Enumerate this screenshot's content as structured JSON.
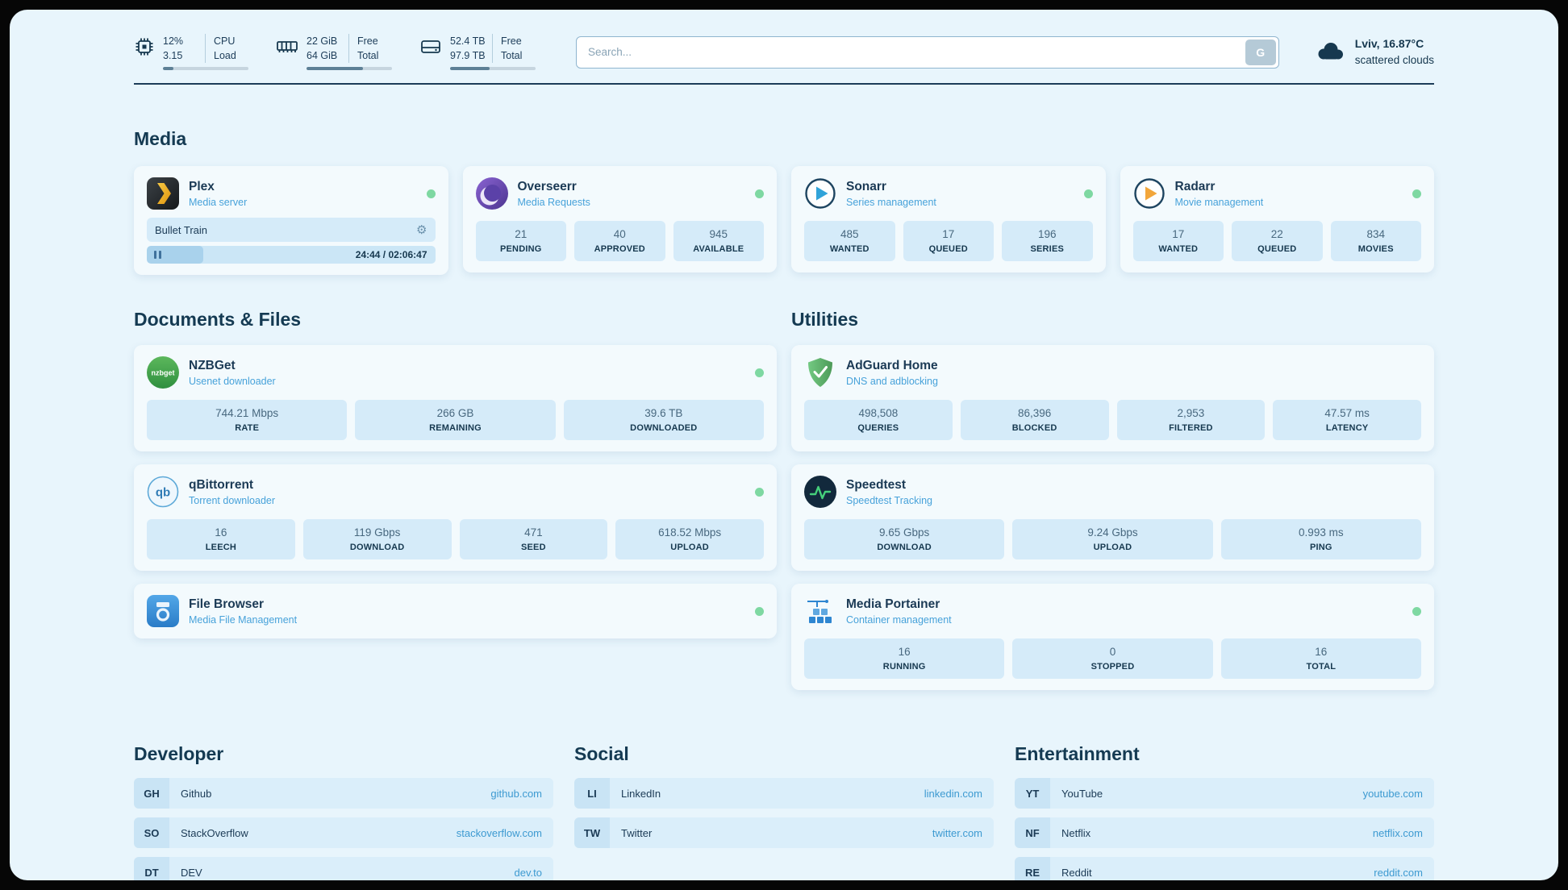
{
  "colors": {
    "background": "#e8f5fc",
    "card": "#f3fafd",
    "stat_box": "#d5ebf9",
    "accent_blue": "#3d9ad1",
    "status_online_green": "#7ed8a2",
    "heading": "#143a52"
  },
  "icons": {
    "gear": "⚙"
  },
  "topbar": {
    "cpu": {
      "usage": "12%",
      "load": "3.15",
      "label_top": "CPU",
      "label_bottom": "Load",
      "percent": 12
    },
    "ram": {
      "free": "22 GiB",
      "total": "64 GiB",
      "label_top": "Free",
      "label_bottom": "Total",
      "percent": 66
    },
    "disk": {
      "free": "52.4 TB",
      "total": "97.9 TB",
      "label_top": "Free",
      "label_bottom": "Total",
      "percent": 46
    },
    "search": {
      "placeholder": "Search...",
      "button_label": "G"
    },
    "weather": {
      "location": "Lviv, 16.87°C",
      "condition": "scattered clouds"
    }
  },
  "media": {
    "title": "Media",
    "plex": {
      "name": "Plex",
      "subtitle": "Media server",
      "status": "online",
      "now_playing": {
        "title": "Bullet Train",
        "time": "24:44 / 02:06:47",
        "progress_percent": 19.5
      }
    },
    "overseerr": {
      "name": "Overseerr",
      "subtitle": "Media Requests",
      "status": "online",
      "stats": [
        {
          "value": "21",
          "label": "PENDING"
        },
        {
          "value": "40",
          "label": "APPROVED"
        },
        {
          "value": "945",
          "label": "AVAILABLE"
        }
      ]
    },
    "sonarr": {
      "name": "Sonarr",
      "subtitle": "Series management",
      "status": "online",
      "stats": [
        {
          "value": "485",
          "label": "WANTED"
        },
        {
          "value": "17",
          "label": "QUEUED"
        },
        {
          "value": "196",
          "label": "SERIES"
        }
      ]
    },
    "radarr": {
      "name": "Radarr",
      "subtitle": "Movie management",
      "status": "online",
      "stats": [
        {
          "value": "17",
          "label": "WANTED"
        },
        {
          "value": "22",
          "label": "QUEUED"
        },
        {
          "value": "834",
          "label": "MOVIES"
        }
      ]
    }
  },
  "documents": {
    "title": "Documents & Files",
    "nzbget": {
      "name": "NZBGet",
      "subtitle": "Usenet downloader",
      "status": "online",
      "stats": [
        {
          "value": "744.21 Mbps",
          "label": "RATE"
        },
        {
          "value": "266 GB",
          "label": "REMAINING"
        },
        {
          "value": "39.6 TB",
          "label": "DOWNLOADED"
        }
      ]
    },
    "qbittorrent": {
      "name": "qBittorrent",
      "subtitle": "Torrent downloader",
      "status": "online",
      "stats": [
        {
          "value": "16",
          "label": "LEECH"
        },
        {
          "value": "119 Gbps",
          "label": "DOWNLOAD"
        },
        {
          "value": "471",
          "label": "SEED"
        },
        {
          "value": "618.52 Mbps",
          "label": "UPLOAD"
        }
      ]
    },
    "filebrowser": {
      "name": "File Browser",
      "subtitle": "Media File Management",
      "status": "online"
    }
  },
  "utilities": {
    "title": "Utilities",
    "adguard": {
      "name": "AdGuard Home",
      "subtitle": "DNS and adblocking",
      "stats": [
        {
          "value": "498,508",
          "label": "QUERIES"
        },
        {
          "value": "86,396",
          "label": "BLOCKED"
        },
        {
          "value": "2,953",
          "label": "FILTERED"
        },
        {
          "value": "47.57 ms",
          "label": "LATENCY"
        }
      ]
    },
    "speedtest": {
      "name": "Speedtest",
      "subtitle": "Speedtest Tracking",
      "stats": [
        {
          "value": "9.65 Gbps",
          "label": "DOWNLOAD"
        },
        {
          "value": "9.24 Gbps",
          "label": "UPLOAD"
        },
        {
          "value": "0.993 ms",
          "label": "PING"
        }
      ]
    },
    "portainer": {
      "name": "Media Portainer",
      "subtitle": "Container management",
      "status": "online",
      "stats": [
        {
          "value": "16",
          "label": "RUNNING"
        },
        {
          "value": "0",
          "label": "STOPPED"
        },
        {
          "value": "16",
          "label": "TOTAL"
        }
      ]
    }
  },
  "links": {
    "developer": {
      "title": "Developer",
      "items": [
        {
          "badge": "GH",
          "name": "Github",
          "url": "github.com"
        },
        {
          "badge": "SO",
          "name": "StackOverflow",
          "url": "stackoverflow.com"
        },
        {
          "badge": "DT",
          "name": "DEV",
          "url": "dev.to"
        }
      ]
    },
    "social": {
      "title": "Social",
      "items": [
        {
          "badge": "LI",
          "name": "LinkedIn",
          "url": "linkedin.com"
        },
        {
          "badge": "TW",
          "name": "Twitter",
          "url": "twitter.com"
        }
      ]
    },
    "entertainment": {
      "title": "Entertainment",
      "items": [
        {
          "badge": "YT",
          "name": "YouTube",
          "url": "youtube.com"
        },
        {
          "badge": "NF",
          "name": "Netflix",
          "url": "netflix.com"
        },
        {
          "badge": "RE",
          "name": "Reddit",
          "url": "reddit.com"
        }
      ]
    }
  }
}
